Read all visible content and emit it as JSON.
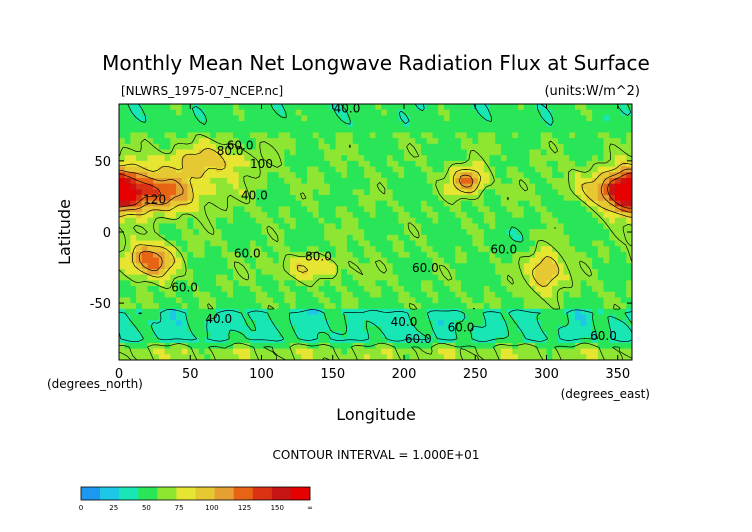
{
  "chart_data": {
    "type": "heatmap",
    "title": "Monthly Mean Net Longwave Radiation Flux at Surface",
    "subtitle_left": "[NLWRS_1975-07_NCEP.nc]",
    "subtitle_right": "(units:W/m^2)",
    "xlabel": "Longitude",
    "ylabel": "Latitude",
    "x_unit_label": "(degrees_east)",
    "y_unit_label": "(degrees_north)",
    "xlim": [
      0,
      360
    ],
    "ylim": [
      -90,
      90
    ],
    "x_ticks": [
      0,
      50,
      100,
      150,
      200,
      250,
      300,
      350
    ],
    "y_ticks": [
      50,
      0,
      -50
    ],
    "contour_interval_text": "CONTOUR INTERVAL = 1.000E+01",
    "contour_labels": [
      "40.0",
      "60.0",
      "80.0",
      "100",
      "120"
    ],
    "colorbar": {
      "ticks": [
        "0",
        "25",
        "50",
        "75",
        "100",
        "125",
        "150",
        "∞"
      ],
      "colors": [
        "#1c98f0",
        "#1dc8e6",
        "#18e6b4",
        "#28e658",
        "#8ee632",
        "#e6e632",
        "#e6c832",
        "#e6a032",
        "#e66414",
        "#dc3214",
        "#c81414",
        "#e60000"
      ]
    },
    "value_range": [
      0,
      160
    ],
    "grid": false
  }
}
